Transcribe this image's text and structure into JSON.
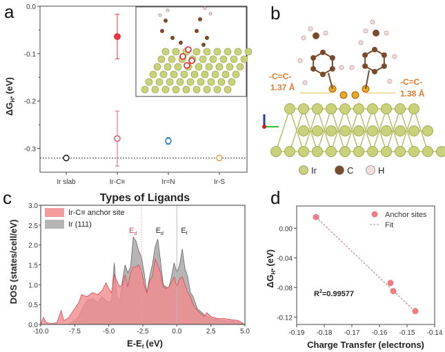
{
  "panels": {
    "a": "a",
    "b": "b",
    "c": "c",
    "d": "d"
  },
  "chart_data": [
    {
      "id": "a",
      "type": "scatter",
      "title": "",
      "xlabel": "Types of Ligands",
      "ylabel": "ΔG_H* (eV)",
      "ylabel_main": "ΔG",
      "ylabel_sub": "H*",
      "ylabel_unit": "(eV)",
      "categories": [
        "Ir slab",
        "Ir-C≡",
        "Ir=N",
        "Ir-S"
      ],
      "ylim": [
        -0.35,
        0.0
      ],
      "yticks": [
        "0.0",
        "-0.1",
        "-0.2",
        "-0.3"
      ],
      "ytick_values": [
        0.0,
        -0.1,
        -0.2,
        -0.3
      ],
      "reference_line": -0.32,
      "points": [
        {
          "category": "Ir slab",
          "value": -0.32,
          "err_low": 0.0,
          "err_high": 0.0,
          "filled": false,
          "color": "#222222"
        },
        {
          "category": "Ir-C≡",
          "value": -0.064,
          "err_low": 0.047,
          "err_high": 0.047,
          "filled": true,
          "color": "#e8363c"
        },
        {
          "category": "Ir-C≡",
          "value": -0.279,
          "err_low": 0.058,
          "err_high": 0.058,
          "filled": false,
          "color": "#e06070"
        },
        {
          "category": "Ir=N",
          "value": -0.284,
          "err_low": 0.007,
          "err_high": 0.007,
          "filled": false,
          "color": "#2f7fcf"
        },
        {
          "category": "Ir-S",
          "value": -0.32,
          "err_low": 0.0,
          "err_high": 0.0,
          "filled": false,
          "color": "#e8a24a"
        }
      ],
      "inset": "adsorbed ligand structure on Ir slab"
    },
    {
      "id": "c",
      "type": "area",
      "title": "",
      "xlabel": "E-E_f (eV)",
      "xlabel_main": "E-E",
      "xlabel_sub": "f",
      "xlabel_unit": "(eV)",
      "ylabel": "DOS (states/cell/eV)",
      "xlim": [
        -10.0,
        5.0
      ],
      "ylim": [
        0.0,
        3.0
      ],
      "xticks": [
        "-10.0",
        "-7.5",
        "-5.0",
        "-2.5",
        "0.0",
        "2.5",
        "5.0"
      ],
      "xtick_values": [
        -10.0,
        -7.5,
        -5.0,
        -2.5,
        0.0,
        2.5,
        5.0
      ],
      "yticks": [
        "0.0",
        "0.5",
        "1.0",
        "1.5",
        "2.0",
        "2.5",
        "3.0"
      ],
      "ytick_values": [
        0.0,
        0.5,
        1.0,
        1.5,
        2.0,
        2.5,
        3.0
      ],
      "legend_position": "top-left",
      "annotations": [
        {
          "text": "E",
          "sub": "d",
          "x": -2.6,
          "color": "#d9434e",
          "line": "dotted"
        },
        {
          "text": "E",
          "sub": "d",
          "x": -1.4,
          "color": "#222222",
          "line": "none"
        },
        {
          "text": "E",
          "sub": "f",
          "x": 0.0,
          "color": "#222222",
          "line": "solid"
        }
      ],
      "series": [
        {
          "name": "Ir (111)",
          "color": "#a8a8a8",
          "x": [
            -10.0,
            -9.0,
            -8.0,
            -7.5,
            -7.2,
            -7.0,
            -6.6,
            -6.2,
            -5.8,
            -5.5,
            -5.2,
            -5.0,
            -4.8,
            -4.6,
            -4.4,
            -4.2,
            -4.0,
            -3.8,
            -3.6,
            -3.4,
            -3.2,
            -3.0,
            -2.8,
            -2.6,
            -2.4,
            -2.2,
            -2.0,
            -1.8,
            -1.6,
            -1.4,
            -1.2,
            -1.0,
            -0.8,
            -0.6,
            -0.4,
            -0.2,
            0.0,
            0.2,
            0.4,
            0.6,
            0.8,
            1.0,
            1.2,
            1.5,
            2.0,
            2.5,
            3.0,
            3.5,
            4.0,
            4.5,
            5.0
          ],
          "y": [
            0.0,
            0.0,
            0.0,
            0.1,
            0.2,
            0.35,
            0.6,
            0.65,
            0.55,
            0.7,
            0.6,
            0.55,
            0.6,
            1.55,
            0.7,
            0.6,
            1.1,
            1.5,
            1.3,
            1.45,
            2.2,
            2.1,
            1.85,
            1.7,
            1.3,
            0.8,
            1.2,
            1.5,
            1.95,
            2.15,
            1.6,
            1.0,
            0.95,
            0.9,
            1.2,
            1.55,
            1.3,
            1.5,
            1.9,
            1.4,
            1.2,
            0.8,
            0.7,
            0.4,
            0.25,
            0.15,
            0.12,
            0.1,
            0.08,
            0.05,
            0.0
          ]
        },
        {
          "name": "Ir-C≡ anchor site",
          "color": "#f28b8f",
          "x": [
            -10.0,
            -9.8,
            -9.6,
            -9.2,
            -8.8,
            -8.5,
            -8.3,
            -8.0,
            -7.5,
            -7.2,
            -7.0,
            -6.6,
            -6.2,
            -5.8,
            -5.5,
            -5.2,
            -5.0,
            -4.8,
            -4.6,
            -4.4,
            -4.2,
            -4.0,
            -3.8,
            -3.6,
            -3.4,
            -3.2,
            -3.0,
            -2.8,
            -2.6,
            -2.4,
            -2.2,
            -2.0,
            -1.8,
            -1.6,
            -1.4,
            -1.2,
            -1.0,
            -0.8,
            -0.6,
            -0.4,
            -0.2,
            0.0,
            0.2,
            0.4,
            0.6,
            0.8,
            1.0,
            1.2,
            1.5,
            2.0,
            2.2,
            2.5,
            3.0,
            3.5,
            4.0,
            4.5,
            5.0
          ],
          "y": [
            0.0,
            0.18,
            0.05,
            0.02,
            0.05,
            0.35,
            0.1,
            0.15,
            0.4,
            0.55,
            0.75,
            0.7,
            0.8,
            0.75,
            0.85,
            1.05,
            0.9,
            0.8,
            1.25,
            1.1,
            0.95,
            1.0,
            1.25,
            0.95,
            1.3,
            1.45,
            1.45,
            1.5,
            1.35,
            1.0,
            0.8,
            1.1,
            1.2,
            1.65,
            1.5,
            1.3,
            0.95,
            0.9,
            0.95,
            1.05,
            1.2,
            0.95,
            1.15,
            1.2,
            1.0,
            0.8,
            0.7,
            0.5,
            0.35,
            0.2,
            0.3,
            0.2,
            0.15,
            0.15,
            0.12,
            0.1,
            0.0
          ]
        }
      ]
    },
    {
      "id": "d",
      "type": "scatter",
      "title": "",
      "xlabel": "Charge Transfer (electrons)",
      "ylabel": "ΔG_H* (eV)",
      "ylabel_main": "ΔG",
      "ylabel_sub": "H*",
      "ylabel_unit": "(eV)",
      "xlim": [
        -0.19,
        -0.14
      ],
      "ylim": [
        -0.13,
        0.03
      ],
      "xticks": [
        "-0.19",
        "-0.18",
        "-0.17",
        "-0.16",
        "-0.15",
        "-0.14"
      ],
      "xtick_values": [
        -0.19,
        -0.18,
        -0.17,
        -0.16,
        -0.15,
        -0.14
      ],
      "yticks": [
        "0.00",
        "-0.04",
        "-0.08",
        "-0.12"
      ],
      "ytick_values": [
        0.0,
        -0.04,
        -0.08,
        -0.12
      ],
      "legend_position": "top-right",
      "annotation": "R²=0.99577",
      "annotation_main": "R",
      "annotation_sup": "2",
      "annotation_rest": "=0.99577",
      "series": [
        {
          "name": "Anchor sites",
          "color": "#f07a80",
          "x": [
            -0.183,
            -0.156,
            -0.155,
            -0.147
          ],
          "y": [
            0.015,
            -0.074,
            -0.085,
            -0.112
          ]
        },
        {
          "name": "Fit",
          "color": "#c78a8a",
          "style": "dashed",
          "x": [
            -0.183,
            -0.147
          ],
          "y": [
            0.015,
            -0.113
          ]
        }
      ]
    }
  ],
  "structure_b": {
    "bond_left_label": "-C=C-",
    "bond_left_length": "1.37 Å",
    "bond_right_label": "-C=C-",
    "bond_right_length": "1.38 Å",
    "legend": [
      {
        "symbol": "Ir",
        "color": "#c9d27a"
      },
      {
        "symbol": "C",
        "color": "#7a4a2a"
      },
      {
        "symbol": "H",
        "color": "#f3dede"
      }
    ],
    "label_color": "#e07a2f"
  }
}
